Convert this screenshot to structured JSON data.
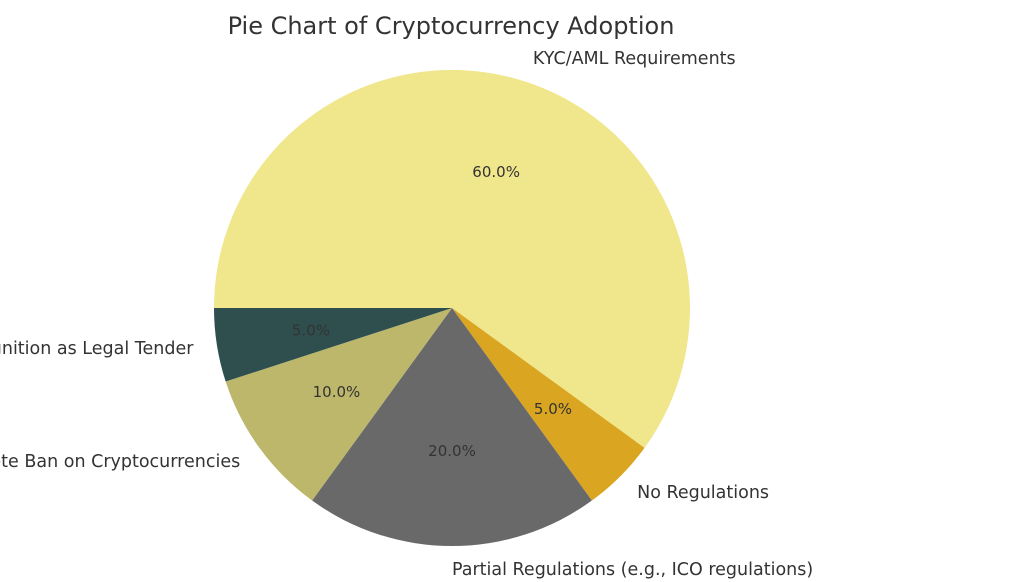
{
  "chart_data": {
    "type": "pie",
    "title": "Pie Chart of Cryptocurrency Adoption",
    "start_angle_deg": 180,
    "direction": "clockwise",
    "slices": [
      {
        "label": "KYC/AML Requirements",
        "value": 60.0,
        "pct_label": "60.0%",
        "color": "#F0E68C"
      },
      {
        "label": "No Regulations",
        "value": 5.0,
        "pct_label": "5.0%",
        "color": "#DAA520"
      },
      {
        "label": "Partial Regulations (e.g., ICO regulations)",
        "value": 20.0,
        "pct_label": "20.0%",
        "color": "#696969"
      },
      {
        "label": "Complete Ban on Cryptocurrencies",
        "value": 10.0,
        "pct_label": "10.0%",
        "color": "#BDB76B"
      },
      {
        "label": "Recognition as Legal Tender",
        "value": 5.0,
        "pct_label": "5.0%",
        "color": "#2F4F4F"
      }
    ]
  }
}
